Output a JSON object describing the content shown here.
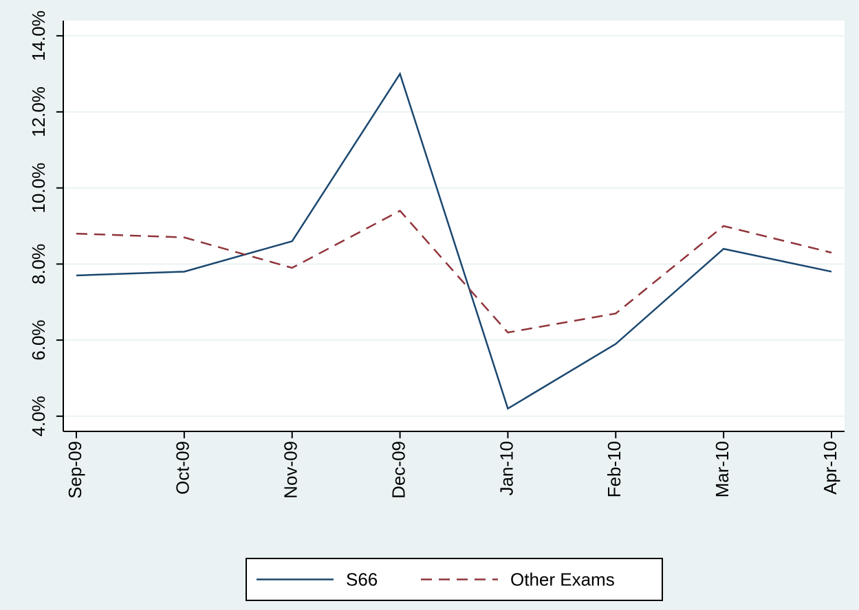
{
  "chart_data": {
    "type": "line",
    "categories": [
      "Sep-09",
      "Oct-09",
      "Nov-09",
      "Dec-09",
      "Jan-10",
      "Feb-10",
      "Mar-10",
      "Apr-10"
    ],
    "series": [
      {
        "name": "S66",
        "color": "#1a476f",
        "dash": "solid",
        "values": [
          7.7,
          7.8,
          8.6,
          13.0,
          4.2,
          5.9,
          8.4,
          7.8
        ]
      },
      {
        "name": "Other Exams",
        "color": "#90353b",
        "dash": "dashed",
        "values": [
          8.8,
          8.7,
          7.9,
          9.4,
          6.2,
          6.7,
          9.0,
          8.3
        ]
      }
    ],
    "ylim": [
      3.6,
      14.4
    ],
    "yticks": [
      {
        "value": 4,
        "label": "4.0%"
      },
      {
        "value": 6,
        "label": "6.0%"
      },
      {
        "value": 8,
        "label": "8.0%"
      },
      {
        "value": 10,
        "label": "10.0%"
      },
      {
        "value": 12,
        "label": "12.0%"
      },
      {
        "value": 14,
        "label": "14.0%"
      }
    ],
    "grid": true,
    "legend": "bottom"
  }
}
